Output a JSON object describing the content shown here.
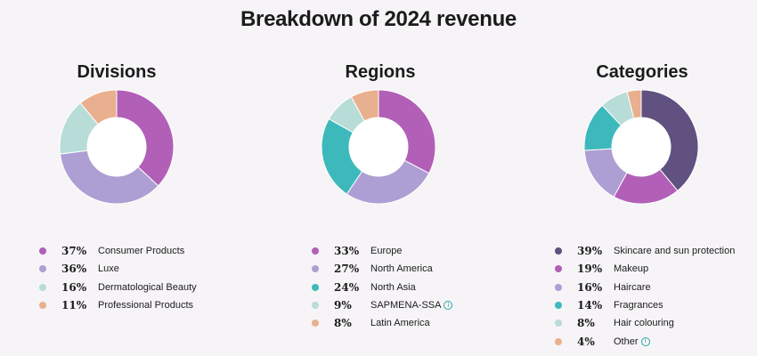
{
  "page": {
    "title": "Breakdown of 2024 revenue"
  },
  "colors": {
    "purple": "#b25fb8",
    "lavender": "#ad9fd3",
    "mint": "#b8dcd7",
    "peach": "#e8b08e",
    "teal": "#3db9bb",
    "darkpurple": "#605180"
  },
  "chart_data": [
    {
      "type": "pie",
      "title": "Divisions",
      "categories": [
        "Consumer Products",
        "Luxe",
        "Dermatological Beauty",
        "Professional Products"
      ],
      "values": [
        37,
        36,
        16,
        11
      ],
      "labels": [
        "37%",
        "36%",
        "16%",
        "11%"
      ],
      "colors": [
        "#b25fb8",
        "#ad9fd3",
        "#b8dcd7",
        "#e8b08e"
      ],
      "info": [
        false,
        false,
        false,
        false
      ],
      "legend": "bottom"
    },
    {
      "type": "pie",
      "title": "Regions",
      "categories": [
        "Europe",
        "North America",
        "North Asia",
        "SAPMENA-SSA",
        "Latin America"
      ],
      "values": [
        33,
        27,
        24,
        9,
        8
      ],
      "labels": [
        "33%",
        "27%",
        "24%",
        "9%",
        "8%"
      ],
      "colors": [
        "#b25fb8",
        "#ad9fd3",
        "#3db9bb",
        "#b8dcd7",
        "#e8b08e"
      ],
      "info": [
        false,
        false,
        false,
        true,
        false
      ],
      "legend": "bottom"
    },
    {
      "type": "pie",
      "title": "Categories",
      "categories": [
        "Skincare and sun protection",
        "Makeup",
        "Haircare",
        "Fragrances",
        "Hair colouring",
        "Other"
      ],
      "values": [
        39,
        19,
        16,
        14,
        8,
        4
      ],
      "labels": [
        "39%",
        "19%",
        "16%",
        "14%",
        "8%",
        "4%"
      ],
      "colors": [
        "#605180",
        "#b25fb8",
        "#ad9fd3",
        "#3db9bb",
        "#b8dcd7",
        "#e8b08e"
      ],
      "info": [
        false,
        false,
        false,
        false,
        false,
        true
      ],
      "legend": "bottom"
    }
  ]
}
